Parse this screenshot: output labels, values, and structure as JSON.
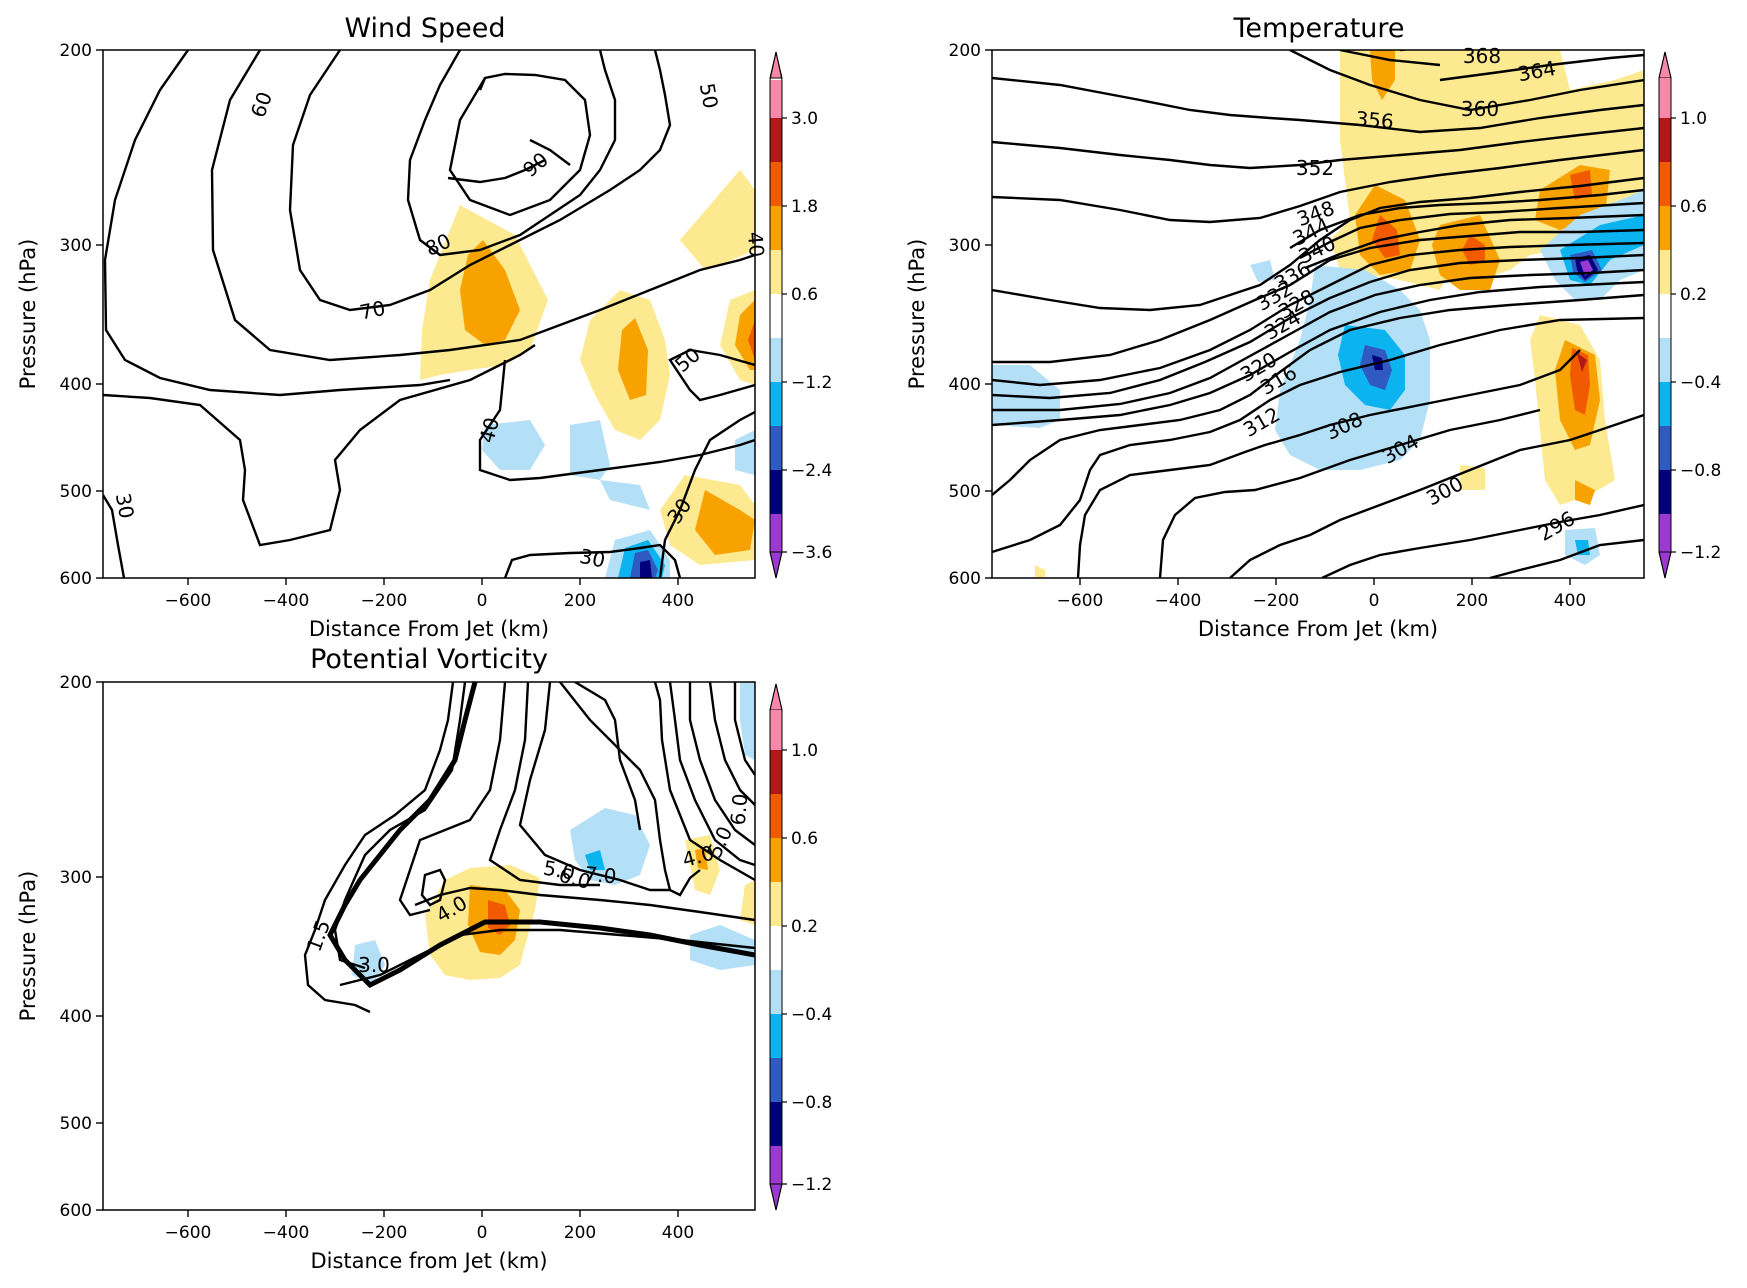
{
  "figure": {
    "panels": [
      {
        "title": "Wind Speed",
        "xlabel": "Distance From Jet (km)",
        "ylabel": "Pressure (hPa)",
        "colorbar": {
          "ticks": [
            "3.0",
            "1.8",
            "0.6",
            "−1.2",
            "−2.4",
            "−3.6"
          ]
        }
      },
      {
        "title": "Temperature",
        "xlabel": "Distance From Jet (km)",
        "ylabel": "Pressure (hPa)",
        "colorbar": {
          "ticks": [
            "1.0",
            "0.6",
            "0.2",
            "−0.4",
            "−0.8",
            "−1.2"
          ]
        }
      },
      {
        "title": "Potential Vorticity",
        "xlabel": "Distance from Jet (km)",
        "ylabel": "Pressure (hPa)",
        "colorbar": {
          "ticks": [
            "1.0",
            "0.6",
            "0.2",
            "−0.4",
            "−0.8",
            "−1.2"
          ]
        }
      }
    ]
  },
  "chart_data": [
    {
      "type": "contour",
      "title": "Wind Speed",
      "xlabel": "Distance From Jet (km)",
      "ylabel": "Pressure (hPa)",
      "xlim": [
        -780,
        550
      ],
      "ylim": [
        600,
        200
      ],
      "y_scale": "log",
      "x_ticks": [
        "−600",
        "−400",
        "−200",
        "0",
        "200",
        "400"
      ],
      "y_ticks": [
        "200",
        "300",
        "400",
        "500",
        "600"
      ],
      "contour_labels": [
        "60",
        "50",
        "90",
        "80",
        "70",
        "40",
        "50",
        "40",
        "30",
        "30",
        "30"
      ],
      "colorbar_ticks": [
        "3.0",
        "1.8",
        "0.6",
        "−1.2",
        "−2.4",
        "−3.6"
      ],
      "colorbar_extend": "both"
    },
    {
      "type": "contour",
      "title": "Temperature",
      "xlabel": "Distance From Jet (km)",
      "ylabel": "Pressure (hPa)",
      "xlim": [
        -780,
        550
      ],
      "ylim": [
        600,
        200
      ],
      "y_scale": "log",
      "x_ticks": [
        "−600",
        "−400",
        "−200",
        "0",
        "200",
        "400"
      ],
      "y_ticks": [
        "200",
        "300",
        "400",
        "500",
        "600"
      ],
      "contour_labels": [
        "368",
        "364",
        "360",
        "356",
        "352",
        "348",
        "344",
        "340",
        "336",
        "332",
        "328",
        "324",
        "320",
        "316",
        "312",
        "308",
        "304",
        "300",
        "296"
      ],
      "colorbar_ticks": [
        "1.0",
        "0.6",
        "0.2",
        "−0.4",
        "−0.8",
        "−1.2"
      ],
      "colorbar_extend": "both"
    },
    {
      "type": "contour",
      "title": "Potential Vorticity",
      "xlabel": "Distance from Jet (km)",
      "ylabel": "Pressure (hPa)",
      "xlim": [
        -780,
        550
      ],
      "ylim": [
        600,
        200
      ],
      "y_scale": "log",
      "x_ticks": [
        "−600",
        "−400",
        "−200",
        "0",
        "200",
        "400"
      ],
      "y_ticks": [
        "200",
        "300",
        "400",
        "500",
        "600"
      ],
      "contour_labels": [
        "1.5",
        "3.0",
        "4.0",
        "5.0",
        "6.0",
        "7.0",
        "4.0",
        "5.0",
        "6.0"
      ],
      "colorbar_ticks": [
        "1.0",
        "0.6",
        "0.2",
        "−0.4",
        "−0.8",
        "−1.2"
      ],
      "colorbar_extend": "both"
    }
  ],
  "colors": {
    "yellow": "#fde98f",
    "orange": "#f8a200",
    "red_orange": "#f25a00",
    "dark_red": "#b21818",
    "pink": "#f788a9",
    "light_blue": "#b3e0f7",
    "blue": "#0cb4ef",
    "mid_blue": "#2f5bc1",
    "navy": "#00007c",
    "purple": "#9a3ad0"
  }
}
